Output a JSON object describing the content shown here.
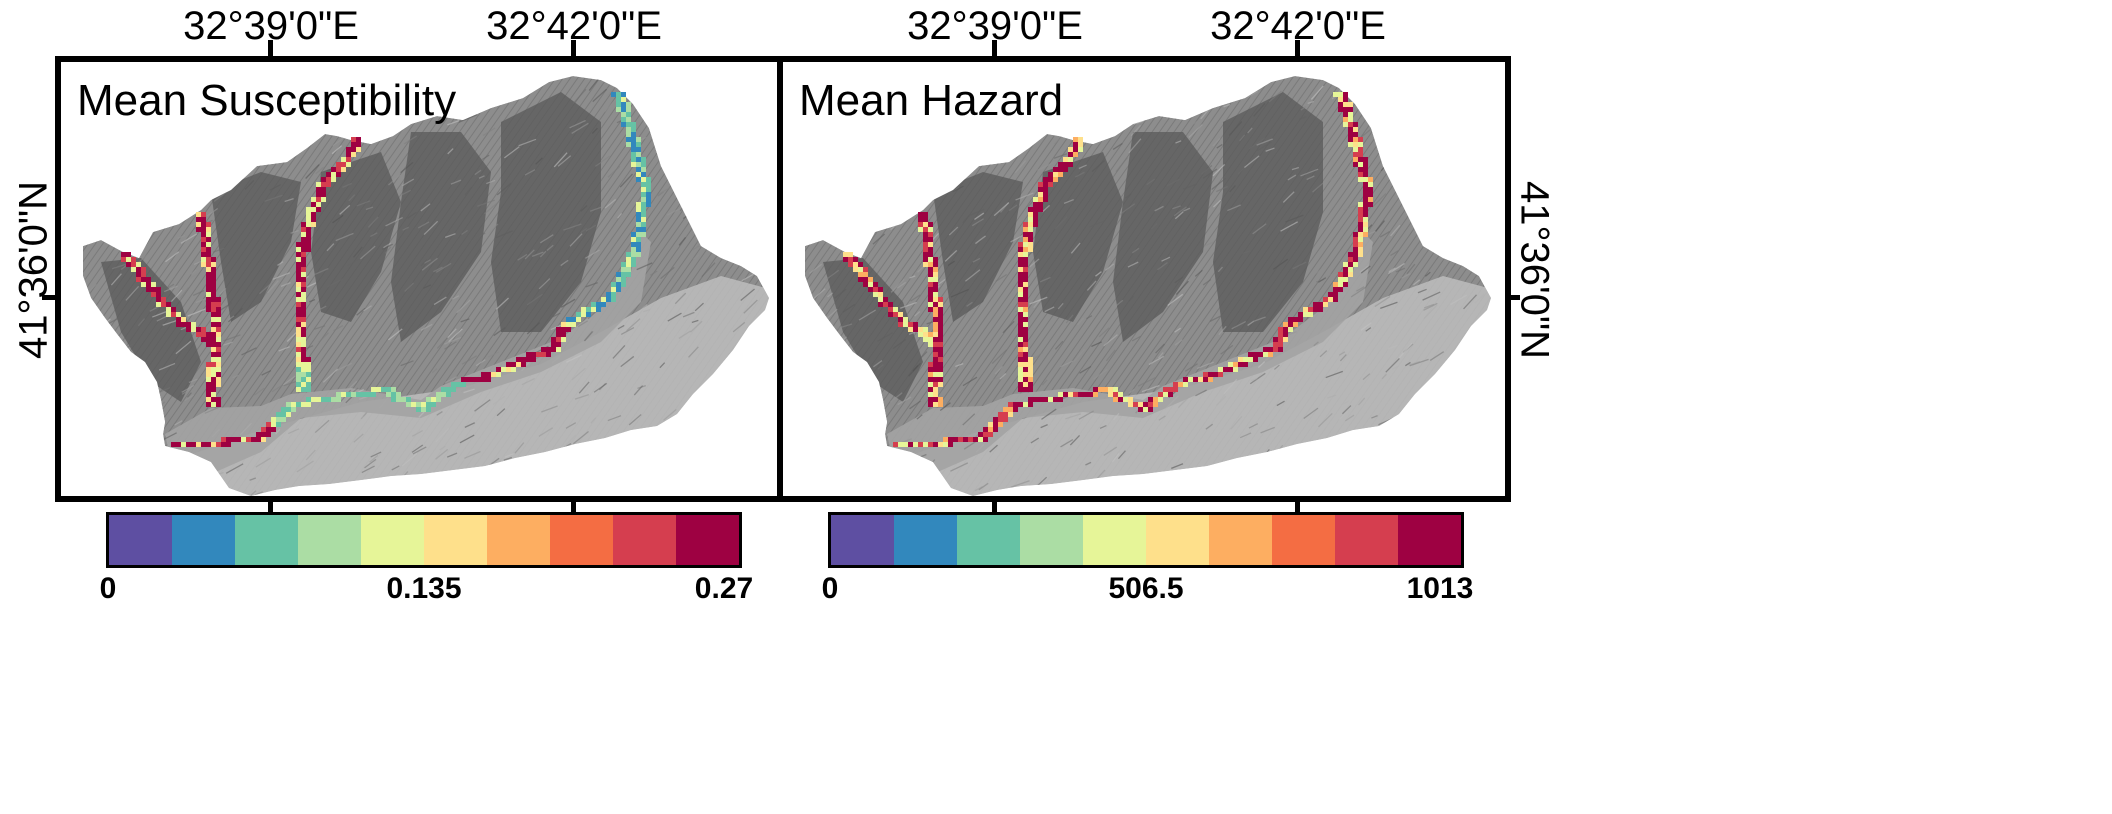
{
  "graticule": {
    "lon_labels": [
      "32°39'0\"E",
      "32°42'0\"E"
    ],
    "lat_label": "41°36'0\"N"
  },
  "panels": [
    {
      "title": "Mean Susceptibility",
      "colorbar": {
        "min": 0,
        "mid": 0.135,
        "max": 0.27,
        "tick_labels": [
          "0",
          "0.135",
          "0.27"
        ]
      }
    },
    {
      "title": "Mean Hazard",
      "colorbar": {
        "min": 0,
        "mid": 506.5,
        "max": 1013,
        "tick_labels": [
          "0",
          "506.5",
          "1013"
        ]
      }
    }
  ],
  "colorbar_colors": [
    "#5e4fa2",
    "#3288bd",
    "#66c2a5",
    "#abdda4",
    "#e6f598",
    "#fee08b",
    "#fdae61",
    "#f46d43",
    "#d53e4f",
    "#9e0142"
  ],
  "terrain_colors": {
    "dark": "#5a5a5a",
    "mid": "#8d8d8d",
    "light": "#bdbdbd",
    "valley": "#a3a3a3"
  }
}
